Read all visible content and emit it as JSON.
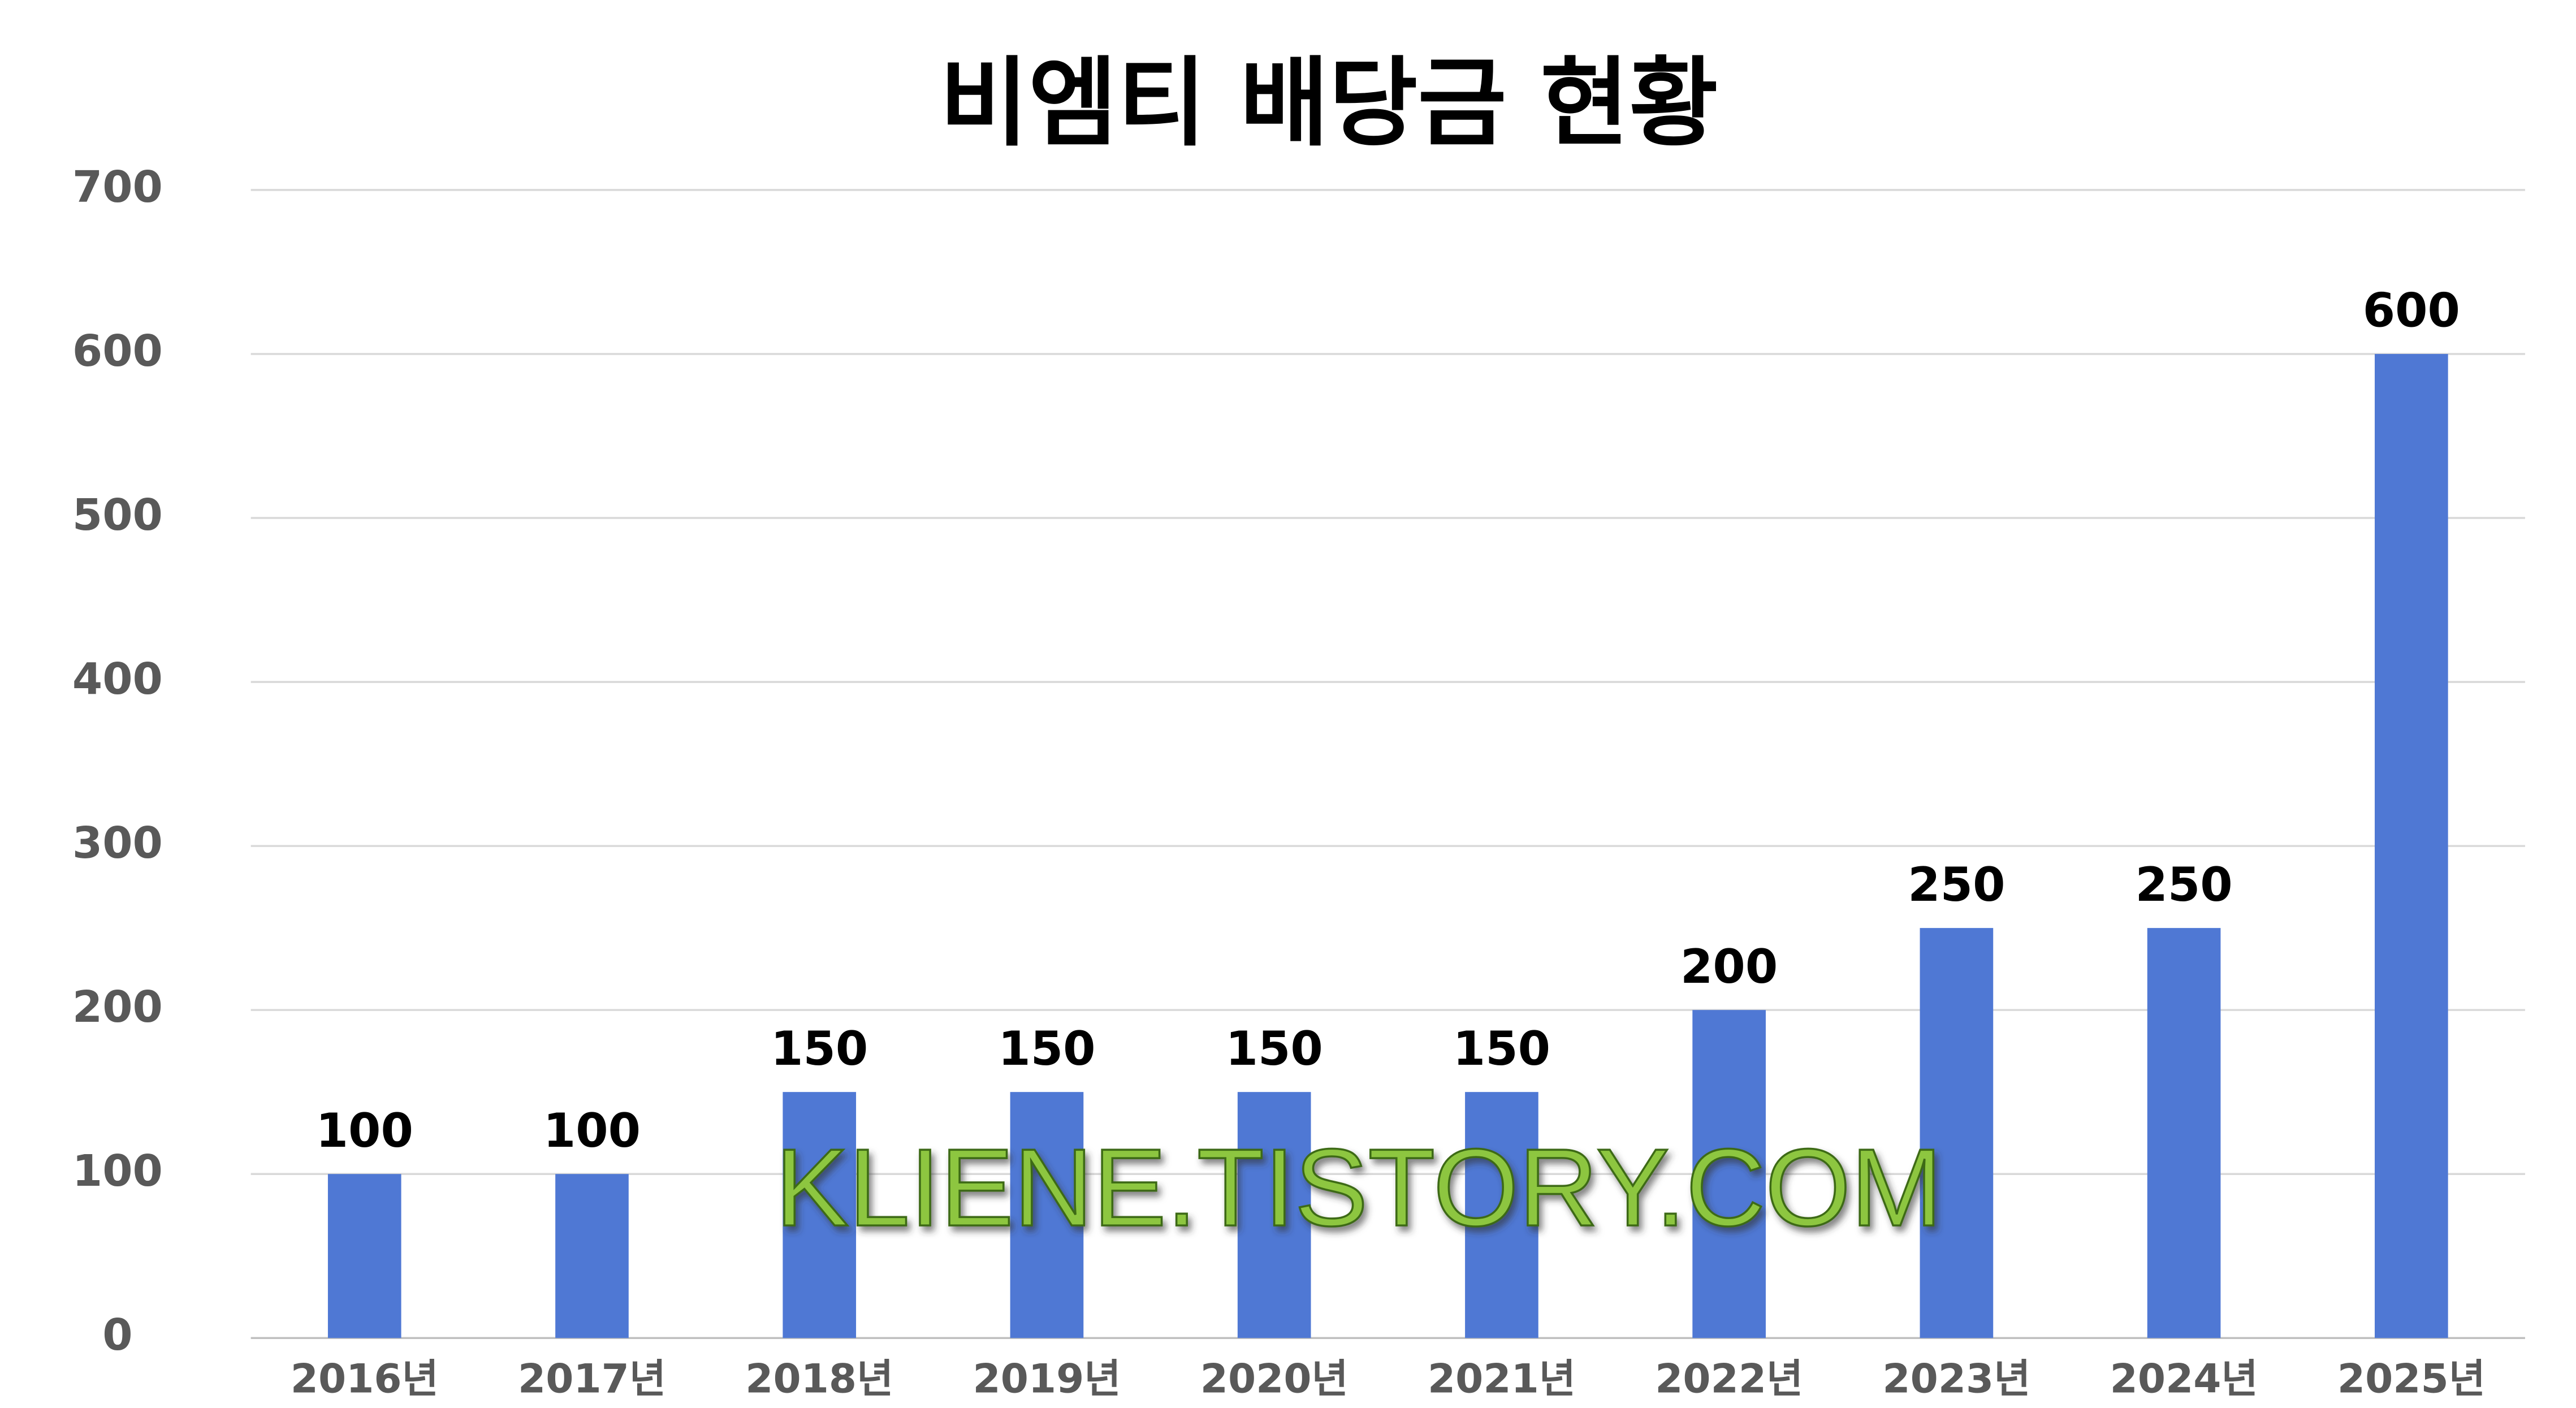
{
  "chart_data": {
    "type": "bar",
    "title": "비엠티 배당금 현황",
    "categories": [
      "2016년",
      "2017년",
      "2018년",
      "2019년",
      "2020년",
      "2021년",
      "2022년",
      "2023년",
      "2024년",
      "2025년"
    ],
    "values": [
      100,
      100,
      150,
      150,
      150,
      150,
      200,
      250,
      250,
      600
    ],
    "color": "#4f78d4",
    "ylim": [
      0,
      700
    ],
    "yticks": [
      0,
      100,
      200,
      300,
      400,
      500,
      600,
      700
    ],
    "grid": true,
    "watermark": "KLIENE.TISTORY.COM"
  }
}
